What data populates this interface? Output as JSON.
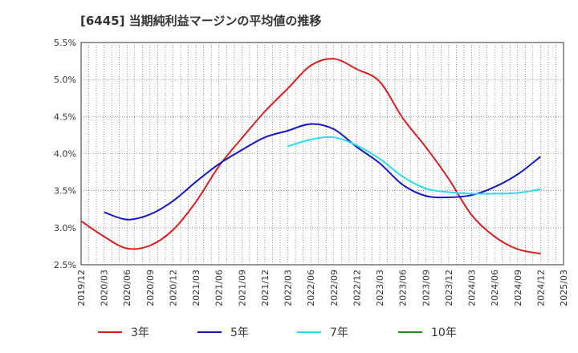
{
  "chart_data": {
    "type": "line",
    "title": "[6445]  当期純利益マージンの平均値の推移",
    "xlabel": "",
    "ylabel": "",
    "x_ticks": [
      "2019/12",
      "2020/03",
      "2020/06",
      "2020/09",
      "2020/12",
      "2021/03",
      "2021/06",
      "2021/09",
      "2021/12",
      "2022/03",
      "2022/06",
      "2022/09",
      "2022/12",
      "2023/03",
      "2023/06",
      "2023/09",
      "2023/12",
      "2024/03",
      "2024/06",
      "2024/09",
      "2024/12",
      "2025/03"
    ],
    "y_ticks": [
      "2.5%",
      "3.0%",
      "3.5%",
      "4.0%",
      "4.5%",
      "5.0%",
      "5.5%"
    ],
    "ylim": [
      2.5,
      5.5
    ],
    "grid": true,
    "legend_position": "bottom",
    "series": [
      {
        "name": "3年",
        "color": "#dd1c1c",
        "points": [
          [
            "2019/12",
            3.09
          ],
          [
            "2020/03",
            2.88
          ],
          [
            "2020/06",
            2.72
          ],
          [
            "2020/09",
            2.76
          ],
          [
            "2020/12",
            2.97
          ],
          [
            "2021/03",
            3.35
          ],
          [
            "2021/06",
            3.83
          ],
          [
            "2021/09",
            4.21
          ],
          [
            "2021/12",
            4.57
          ],
          [
            "2022/03",
            4.88
          ],
          [
            "2022/06",
            5.19
          ],
          [
            "2022/09",
            5.28
          ],
          [
            "2022/12",
            5.14
          ],
          [
            "2023/03",
            4.97
          ],
          [
            "2023/06",
            4.48
          ],
          [
            "2023/09",
            4.09
          ],
          [
            "2023/12",
            3.66
          ],
          [
            "2024/03",
            3.17
          ],
          [
            "2024/06",
            2.88
          ],
          [
            "2024/09",
            2.71
          ],
          [
            "2024/12",
            2.65
          ]
        ]
      },
      {
        "name": "5年",
        "color": "#1515c8",
        "points": [
          [
            "2020/03",
            3.21
          ],
          [
            "2020/06",
            3.11
          ],
          [
            "2020/09",
            3.18
          ],
          [
            "2020/12",
            3.36
          ],
          [
            "2021/03",
            3.62
          ],
          [
            "2021/06",
            3.86
          ],
          [
            "2021/09",
            4.05
          ],
          [
            "2021/12",
            4.22
          ],
          [
            "2022/03",
            4.31
          ],
          [
            "2022/06",
            4.4
          ],
          [
            "2022/09",
            4.33
          ],
          [
            "2022/12",
            4.09
          ],
          [
            "2023/03",
            3.87
          ],
          [
            "2023/06",
            3.58
          ],
          [
            "2023/09",
            3.43
          ],
          [
            "2023/12",
            3.41
          ],
          [
            "2024/03",
            3.44
          ],
          [
            "2024/06",
            3.55
          ],
          [
            "2024/09",
            3.72
          ],
          [
            "2024/12",
            3.96
          ]
        ]
      },
      {
        "name": "7年",
        "color": "#22e0ee",
        "points": [
          [
            "2022/03",
            4.1
          ],
          [
            "2022/06",
            4.19
          ],
          [
            "2022/09",
            4.22
          ],
          [
            "2022/12",
            4.11
          ],
          [
            "2023/03",
            3.93
          ],
          [
            "2023/06",
            3.69
          ],
          [
            "2023/09",
            3.53
          ],
          [
            "2023/12",
            3.48
          ],
          [
            "2024/03",
            3.46
          ],
          [
            "2024/06",
            3.46
          ],
          [
            "2024/09",
            3.47
          ],
          [
            "2024/12",
            3.52
          ]
        ]
      },
      {
        "name": "10年",
        "color": "#1c8c1c",
        "points": []
      }
    ]
  }
}
